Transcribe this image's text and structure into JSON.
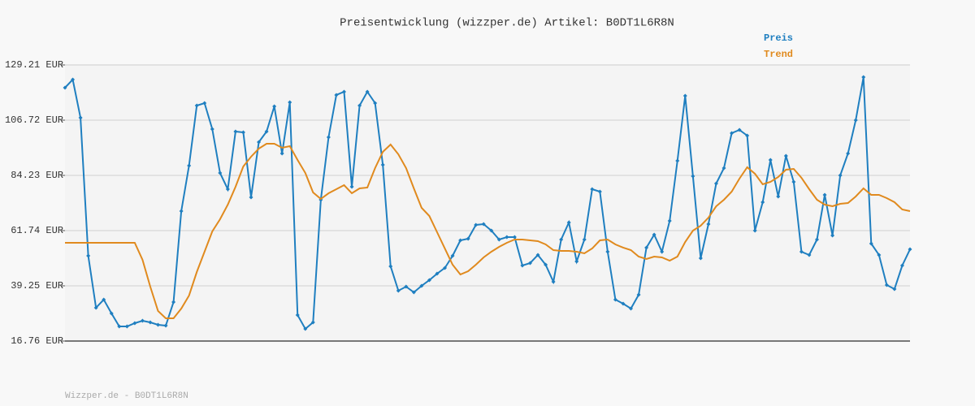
{
  "chart_data": {
    "type": "line",
    "title": "Preisentwicklung (wizzper.de) Artikel: B0DT1L6R8N",
    "footer": "Wizzper.de - B0DT1L6R8N",
    "categories": [
      null,
      null,
      null,
      null,
      null,
      null,
      null,
      null,
      null,
      null,
      null,
      null,
      null,
      null,
      null,
      null,
      null,
      null,
      null,
      null,
      null,
      null,
      null,
      null,
      null,
      null,
      null,
      null,
      null,
      null,
      null,
      null,
      null,
      null,
      null,
      null,
      null,
      null,
      null,
      null,
      null,
      null,
      null,
      null,
      null,
      null,
      null,
      null,
      null,
      null,
      null,
      null,
      null,
      null,
      null,
      null,
      null,
      null,
      null,
      null,
      null,
      null,
      null,
      null,
      null,
      null,
      null,
      null,
      null,
      null,
      null,
      null,
      null,
      null,
      null,
      null,
      null,
      null,
      null,
      null,
      null,
      null,
      null,
      null,
      null,
      null,
      null,
      null,
      null,
      null,
      null,
      null,
      null,
      null,
      null,
      null,
      null,
      null,
      null,
      null,
      null,
      null,
      null,
      null,
      null,
      null,
      null,
      null,
      null,
      null
    ],
    "series": [
      {
        "name": "Preis",
        "color": "#1f7fc0",
        "markers": true,
        "values": [
          119.95,
          123.26,
          107.71,
          51.49,
          30.32,
          33.63,
          28.01,
          22.71,
          22.71,
          24.04,
          25.03,
          24.37,
          23.37,
          23.04,
          32.64,
          69.68,
          88.2,
          112.67,
          113.67,
          103.08,
          85.22,
          78.61,
          102.09,
          101.76,
          75.3,
          97.79,
          102.09,
          112.34,
          93.16,
          114.0,
          27.34,
          21.72,
          24.37,
          74.31,
          99.78,
          116.97,
          118.3,
          79.6,
          112.67,
          118.3,
          113.67,
          88.53,
          47.19,
          37.27,
          38.92,
          36.6,
          39.25,
          41.57,
          44.21,
          46.53,
          51.49,
          57.77,
          58.43,
          64.06,
          64.39,
          61.74,
          58.1,
          59.09,
          59.09,
          47.52,
          48.51,
          51.82,
          47.85,
          40.9,
          58.1,
          65.05,
          49.17,
          58.1,
          78.61,
          77.62,
          53.14,
          33.63,
          31.97,
          29.99,
          35.61,
          54.8,
          60.09,
          53.14,
          65.71,
          90.18,
          116.64,
          83.9,
          50.5,
          64.39,
          80.92,
          87.21,
          101.43,
          102.75,
          100.44,
          61.74,
          73.32,
          90.51,
          75.63,
          92.17,
          81.59,
          53.14,
          51.82,
          58.1,
          76.29,
          59.76,
          84.23,
          93.16,
          106.72,
          124.25,
          56.45,
          51.82,
          39.58,
          37.93,
          47.52,
          54.13
        ]
      },
      {
        "name": "Trend",
        "color": "#e08a1e",
        "markers": false,
        "values": [
          56.78,
          56.78,
          56.78,
          56.78,
          56.78,
          56.78,
          56.78,
          56.78,
          56.78,
          56.78,
          49.83,
          38.92,
          29.0,
          26.02,
          26.02,
          29.99,
          35.28,
          44.87,
          53.14,
          61.41,
          66.37,
          72.32,
          79.6,
          87.87,
          91.84,
          95.14,
          97.13,
          97.13,
          95.48,
          96.14,
          90.51,
          85.22,
          77.29,
          74.64,
          76.95,
          78.61,
          80.26,
          76.95,
          78.94,
          79.27,
          87.21,
          93.82,
          96.8,
          92.83,
          87.21,
          78.94,
          71.0,
          67.69,
          61.08,
          54.46,
          47.85,
          43.88,
          45.2,
          47.85,
          50.83,
          53.14,
          55.13,
          56.78,
          58.1,
          58.1,
          57.77,
          57.44,
          56.12,
          53.8,
          53.47,
          53.47,
          53.14,
          52.48,
          54.46,
          57.77,
          58.1,
          56.12,
          54.8,
          53.8,
          51.16,
          50.16,
          51.16,
          50.83,
          49.5,
          51.16,
          57.11,
          61.74,
          63.73,
          67.03,
          71.66,
          74.31,
          77.62,
          82.91,
          87.54,
          84.89,
          80.59,
          81.59,
          83.57,
          86.55,
          86.88,
          83.24,
          78.61,
          74.31,
          72.32,
          71.66,
          72.65,
          72.99,
          75.63,
          78.94,
          76.29,
          76.29,
          74.97,
          73.32,
          70.34,
          69.68
        ]
      }
    ],
    "ylim": [
      16.76,
      129.21
    ],
    "yticks": [
      {
        "value": 16.76,
        "label": "16.76 EUR"
      },
      {
        "value": 39.25,
        "label": "39.25 EUR"
      },
      {
        "value": 61.74,
        "label": "61.74 EUR"
      },
      {
        "value": 84.23,
        "label": "84.23 EUR"
      },
      {
        "value": 106.72,
        "label": "106.72 EUR"
      },
      {
        "value": 129.21,
        "label": "129.21 EUR"
      }
    ],
    "grid": true
  }
}
